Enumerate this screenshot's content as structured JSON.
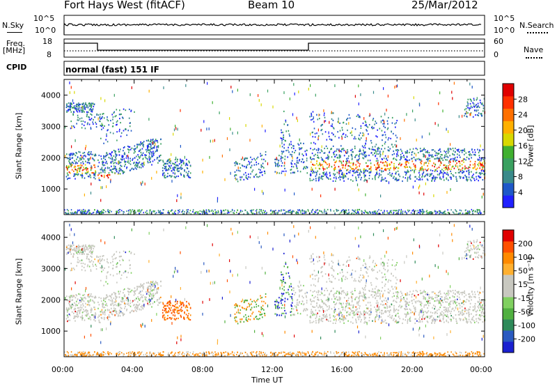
{
  "header": {
    "radar": "Fort Hays West (fitACF)",
    "beam": "Beam 10",
    "date": "25/Mar/2012"
  },
  "top_panels": {
    "nsky_label": "N.Sky",
    "nsky_ticks": [
      "10^5",
      "10^0"
    ],
    "nsearch_label": "N.Search",
    "nsearch_ticks": [
      "10^5",
      "10^0"
    ],
    "freq_label": "Freq.",
    "freq_unit": "[MHz]",
    "freq_ticks": [
      "18",
      "8"
    ],
    "nave_label": "Nave",
    "nave_ticks": [
      "60",
      "0"
    ],
    "cpid_label": "CPID",
    "cpid_value": "normal (fast) 151 IF"
  },
  "chart_data": [
    {
      "type": "heatmap",
      "name": "power",
      "ylabel": "Slant Range [km]",
      "xlabel": "Time UT",
      "xlim": [
        0,
        24
      ],
      "ylim": [
        180,
        4500
      ],
      "x_ticks": [
        "00:00",
        "04:00",
        "08:00",
        "12:00",
        "16:00",
        "20:00",
        "00:00"
      ],
      "y_ticks": [
        1000,
        2000,
        3000,
        4000
      ],
      "colorbar": {
        "label": "Power [dB]",
        "ticks": [
          "4",
          "8",
          "12",
          "16",
          "20",
          "24",
          "28"
        ],
        "colors": [
          "#2020ff",
          "#1e58c8",
          "#3a8a8a",
          "#3aa060",
          "#40b030",
          "#d8d800",
          "#ffb000",
          "#ff7000",
          "#ff3000",
          "#e00000"
        ]
      }
    },
    {
      "type": "heatmap",
      "name": "velocity",
      "ylabel": "Slant Range [km]",
      "xlabel": "Time UT",
      "xlim": [
        0,
        24
      ],
      "ylim": [
        180,
        4500
      ],
      "x_ticks": [
        "00:00",
        "04:00",
        "08:00",
        "12:00",
        "16:00",
        "20:00",
        "00:00"
      ],
      "y_ticks": [
        1000,
        2000,
        3000,
        4000
      ],
      "colorbar": {
        "label": "Velocity [m s⁻¹]",
        "ticks": [
          "200",
          "100",
          "50",
          "15",
          "-15",
          "-50",
          "-100",
          "-200"
        ],
        "colors": [
          "#1a20d0",
          "#2a5ac0",
          "#2e8a5a",
          "#50b040",
          "#80d060",
          "#c8c8c0",
          "#c8c8c0",
          "#ffb030",
          "#ff8a00",
          "#ff5000",
          "#e00000"
        ]
      }
    }
  ],
  "x_axis": {
    "ticks": [
      "00:00",
      "04:00",
      "08:00",
      "12:00",
      "16:00",
      "20:00",
      "00:00"
    ],
    "title": "Time UT"
  }
}
